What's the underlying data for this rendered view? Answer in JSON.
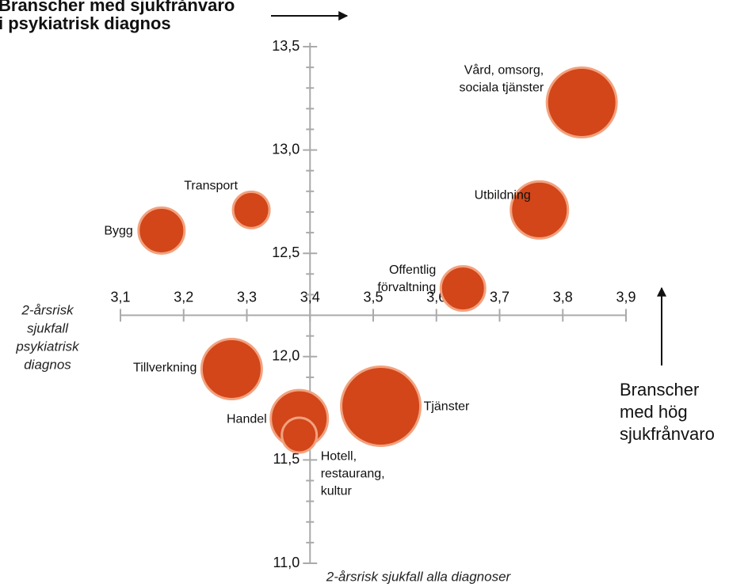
{
  "chart_data": {
    "type": "scatter",
    "y_annotation": [
      "Branscher med sjukfrånvaro",
      "i psykiatrisk diagnos"
    ],
    "x_annotation": [
      "Branscher",
      "med hög",
      "sjukfrånvaro"
    ],
    "ylabel": [
      "2-årsrisk",
      "sjukfall",
      "psykiatrisk",
      "diagnos"
    ],
    "xlabel": "2-årsrisk sjukfall alla diagnoser",
    "color": "#d2461a",
    "edge_color": "#f2a27e",
    "labels": [
      [
        "Vård, omsorg,",
        "sociala tjänster"
      ],
      [
        "Utbildning"
      ],
      [
        "Offentlig",
        "förvaltning"
      ],
      [
        "Transport"
      ],
      [
        "Bygg"
      ],
      [
        "Tillverkning"
      ],
      [
        "Handel"
      ],
      [
        "Tjänster"
      ],
      [
        "Hotell,",
        "restaurang,",
        "kultur"
      ]
    ],
    "x": [
      3.83,
      3.763,
      3.642,
      3.307,
      3.165,
      3.276,
      3.383,
      3.512,
      3.383
    ],
    "y": [
      13.23,
      12.71,
      12.33,
      12.71,
      12.61,
      11.94,
      11.7,
      11.76,
      11.62
    ],
    "sizes": [
      44,
      36,
      28,
      23,
      29,
      38,
      36,
      50,
      22
    ],
    "xlim": [
      3.1,
      3.9
    ],
    "ylim": [
      11.0,
      13.5
    ],
    "x_axis_at": 12.2,
    "y_axis_at": 3.4,
    "xticks": [
      {
        "value": 3.1,
        "label": "3,1"
      },
      {
        "value": 3.2,
        "label": "3,2"
      },
      {
        "value": 3.3,
        "label": "3,3"
      },
      {
        "value": 3.4,
        "label": "3,4"
      },
      {
        "value": 3.5,
        "label": "3,5"
      },
      {
        "value": 3.6,
        "label": "3,6"
      },
      {
        "value": 3.7,
        "label": "3,7"
      },
      {
        "value": 3.8,
        "label": "3,8"
      },
      {
        "value": 3.9,
        "label": "3,9"
      }
    ],
    "yticks": [
      {
        "value": 11.0,
        "label": "11,0"
      },
      {
        "value": 11.5,
        "label": "11,5"
      },
      {
        "value": 12.0,
        "label": "12,0"
      },
      {
        "value": 12.5,
        "label": "12,5"
      },
      {
        "value": 13.0,
        "label": "13,0"
      },
      {
        "value": 13.5,
        "label": "13,5"
      }
    ],
    "y_minor_ticks": [
      11.1,
      11.2,
      11.3,
      11.4,
      11.6,
      11.7,
      11.8,
      11.9,
      12.1,
      12.2,
      12.3,
      12.4,
      12.6,
      12.7,
      12.8,
      12.9,
      13.1,
      13.2,
      13.3,
      13.4
    ]
  }
}
